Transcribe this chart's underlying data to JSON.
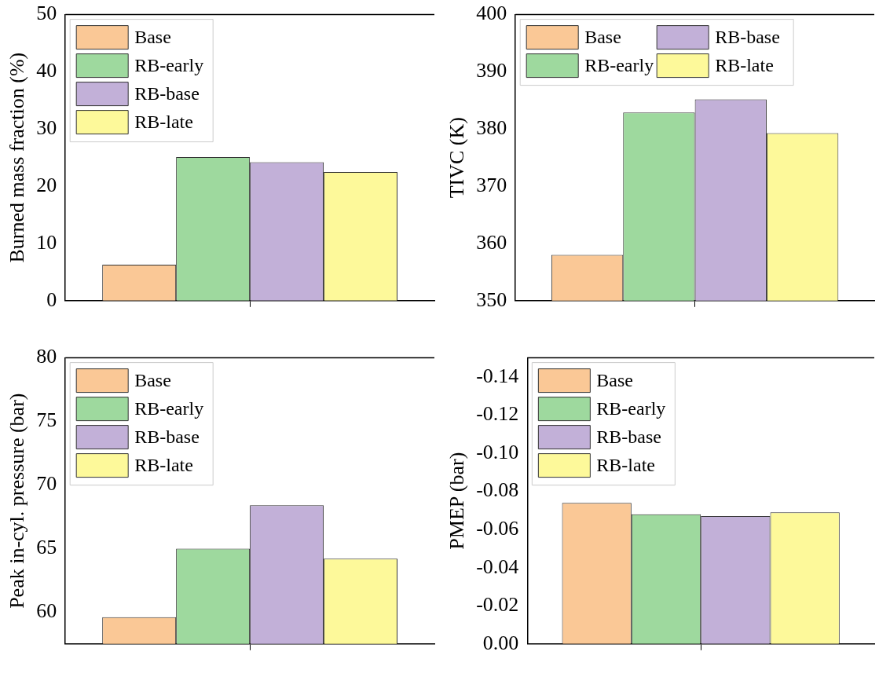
{
  "chart_data": [
    {
      "type": "bar",
      "ylabel": "Burned mass fraction (%)",
      "categories": [
        null
      ],
      "series": [
        {
          "name": "Base",
          "color": "#fac896",
          "values": [
            6.3
          ]
        },
        {
          "name": "RB-early",
          "color": "#9ed99e",
          "values": [
            25.1
          ]
        },
        {
          "name": "RB-base",
          "color": "#c2b0d8",
          "values": [
            24.2
          ]
        },
        {
          "name": "RB-late",
          "color": "#fdf99a",
          "values": [
            22.5
          ]
        }
      ],
      "ylim": [
        0,
        50
      ],
      "yticks": [
        0,
        10,
        20,
        30,
        40,
        50
      ],
      "grid": false,
      "legend": "top left"
    },
    {
      "type": "bar",
      "ylabel": "TIVC (K)",
      "categories": [
        null
      ],
      "series": [
        {
          "name": "Base",
          "color": "#fac896",
          "values": [
            358.0
          ]
        },
        {
          "name": "RB-early",
          "color": "#9ed99e",
          "values": [
            382.9
          ]
        },
        {
          "name": "RB-base",
          "color": "#c2b0d8",
          "values": [
            385.2
          ]
        },
        {
          "name": "RB-late",
          "color": "#fdf99a",
          "values": [
            379.3
          ]
        }
      ],
      "ylim": [
        350,
        400
      ],
      "yticks": [
        350,
        360,
        370,
        380,
        390,
        400
      ],
      "grid": false,
      "legend": "top left"
    },
    {
      "type": "bar",
      "ylabel": "Peak in-cyl. pressure (bar)",
      "categories": [
        null
      ],
      "series": [
        {
          "name": "Base",
          "color": "#fac896",
          "values": [
            59.6
          ]
        },
        {
          "name": "RB-early",
          "color": "#9ed99e",
          "values": [
            65.0
          ]
        },
        {
          "name": "RB-base",
          "color": "#c2b0d8",
          "values": [
            68.4
          ]
        },
        {
          "name": "RB-late",
          "color": "#fdf99a",
          "values": [
            64.2
          ]
        }
      ],
      "ylim": [
        57.5,
        80
      ],
      "yticks": [
        60,
        65,
        70,
        75,
        80
      ],
      "grid": false,
      "legend": "top left"
    },
    {
      "type": "bar",
      "ylabel": "PMEP (bar)",
      "categories": [
        null
      ],
      "series": [
        {
          "name": "Base",
          "color": "#fac896",
          "values": [
            -0.074
          ]
        },
        {
          "name": "RB-early",
          "color": "#9ed99e",
          "values": [
            -0.068
          ]
        },
        {
          "name": "RB-base",
          "color": "#c2b0d8",
          "values": [
            -0.067
          ]
        },
        {
          "name": "RB-late",
          "color": "#fdf99a",
          "values": [
            -0.069
          ]
        }
      ],
      "ylim": [
        0,
        -0.15
      ],
      "yticks": [
        {
          "value": 0,
          "label": "0.00"
        },
        -0.02,
        -0.04,
        -0.06,
        -0.08,
        {
          "value": -0.1,
          "label": "-0.10"
        },
        -0.12,
        -0.14
      ],
      "grid": false,
      "legend": "top left"
    }
  ]
}
